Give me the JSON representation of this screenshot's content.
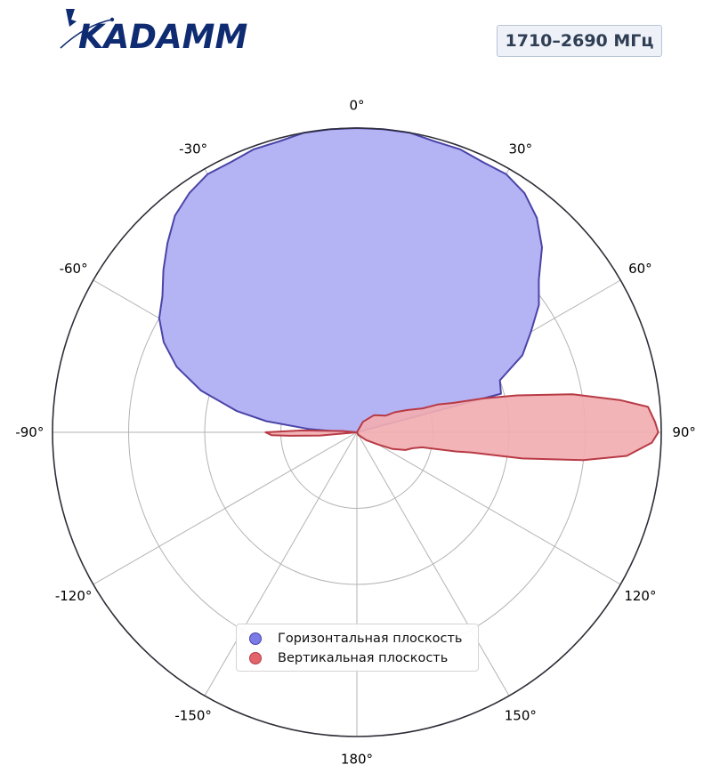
{
  "brand": {
    "logo_text": "KADAMM",
    "colors": {
      "logo": "#0f2c72"
    }
  },
  "frequency_badge": "1710–2690 МГц",
  "chart_data": {
    "type": "polar-area",
    "theta_zero": "top",
    "theta_direction": "clockwise",
    "theta_ticks": [
      {
        "deg": 0,
        "label": "0°"
      },
      {
        "deg": 30,
        "label": "30°"
      },
      {
        "deg": 60,
        "label": "60°"
      },
      {
        "deg": 90,
        "label": "90°"
      },
      {
        "deg": 120,
        "label": "120°"
      },
      {
        "deg": 150,
        "label": "150°"
      },
      {
        "deg": 180,
        "label": "180°"
      },
      {
        "deg": -150,
        "label": "-150°"
      },
      {
        "deg": -120,
        "label": "-120°"
      },
      {
        "deg": -90,
        "label": "-90°"
      },
      {
        "deg": -60,
        "label": "-60°"
      },
      {
        "deg": -30,
        "label": "-30°"
      }
    ],
    "r_range": [
      0,
      1
    ],
    "r_grid": [
      0.25,
      0.5,
      0.75,
      1.0
    ],
    "grid": true,
    "legend_position": "lower-center",
    "series": [
      {
        "name": "Горизонтальная плоскость",
        "fill": "#b4b4f4",
        "stroke": "#4a44a8",
        "legend_color": "#7b7be8",
        "points": [
          [
            75,
            0.49
          ],
          [
            70,
            0.5
          ],
          [
            65,
            0.6
          ],
          [
            60,
            0.66
          ],
          [
            55,
            0.73
          ],
          [
            50,
            0.78
          ],
          [
            45,
            0.86
          ],
          [
            40,
            0.92
          ],
          [
            35,
            0.96
          ],
          [
            30,
            0.98
          ],
          [
            25,
            0.98
          ],
          [
            20,
            0.99
          ],
          [
            15,
            0.99
          ],
          [
            10,
            1.0
          ],
          [
            5,
            1.0
          ],
          [
            0,
            1.0
          ],
          [
            -5,
            1.0
          ],
          [
            -10,
            1.0
          ],
          [
            -15,
            0.99
          ],
          [
            -20,
            0.99
          ],
          [
            -25,
            0.98
          ],
          [
            -30,
            0.98
          ],
          [
            -35,
            0.96
          ],
          [
            -40,
            0.93
          ],
          [
            -45,
            0.88
          ],
          [
            -50,
            0.83
          ],
          [
            -55,
            0.78
          ],
          [
            -60,
            0.75
          ],
          [
            -65,
            0.7
          ],
          [
            -70,
            0.63
          ],
          [
            -75,
            0.53
          ],
          [
            -80,
            0.4
          ],
          [
            -83,
            0.3
          ],
          [
            -86,
            0.16
          ],
          [
            -88,
            0.06
          ],
          [
            -90,
            0.0
          ]
        ]
      },
      {
        "name": "Вертикальная плоскость",
        "fill": "#f2aeb2",
        "stroke": "#b83a45",
        "legend_color": "#e2656d",
        "points": [
          [
            0,
            0.0
          ],
          [
            30,
            0.04
          ],
          [
            45,
            0.08
          ],
          [
            60,
            0.11
          ],
          [
            62,
            0.14
          ],
          [
            66,
            0.18
          ],
          [
            70,
            0.23
          ],
          [
            71,
            0.28
          ],
          [
            73,
            0.33
          ],
          [
            75,
            0.43
          ],
          [
            77,
            0.54
          ],
          [
            80,
            0.72
          ],
          [
            83,
            0.87
          ],
          [
            85,
            0.96
          ],
          [
            88,
            0.98
          ],
          [
            90,
            0.99
          ],
          [
            92,
            0.97
          ],
          [
            95,
            0.89
          ],
          [
            97,
            0.75
          ],
          [
            99,
            0.55
          ],
          [
            100,
            0.38
          ],
          [
            101,
            0.33
          ],
          [
            103,
            0.22
          ],
          [
            106,
            0.19
          ],
          [
            110,
            0.17
          ],
          [
            115,
            0.13
          ],
          [
            120,
            0.08
          ],
          [
            130,
            0.04
          ],
          [
            150,
            0.01
          ],
          [
            180,
            0.0
          ],
          [
            -100,
            0.0
          ],
          [
            -95,
            0.12
          ],
          [
            -93,
            0.22
          ],
          [
            -92,
            0.28
          ],
          [
            -90,
            0.3
          ],
          [
            -88,
            0.18
          ],
          [
            -85,
            0.05
          ],
          [
            -80,
            0.0
          ]
        ]
      }
    ]
  }
}
